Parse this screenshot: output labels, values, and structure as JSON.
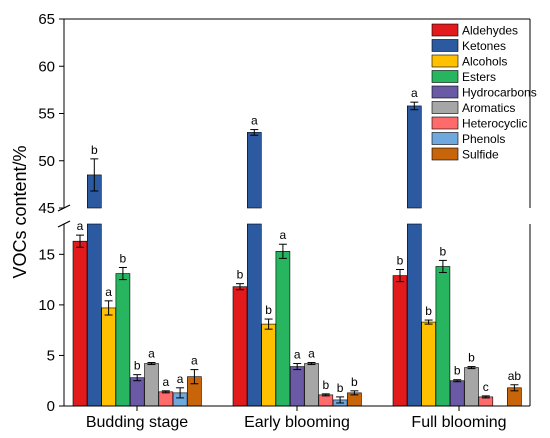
{
  "chart_data": {
    "type": "bar",
    "title": "",
    "xlabel": "",
    "ylabel": "VOCs content/%",
    "axis_break": {
      "lower_range": [
        0,
        18
      ],
      "upper_range": [
        45,
        65
      ]
    },
    "y_ticks_lower": [
      0,
      5,
      10,
      15
    ],
    "y_ticks_upper": [
      45,
      50,
      55,
      60,
      65
    ],
    "legend_position": "top-right",
    "grid": false,
    "categories": [
      "Budding stage",
      "Early blooming",
      "Full blooming"
    ],
    "series": [
      {
        "name": "Aldehydes",
        "color": "#e31a1c",
        "values": [
          16.3,
          11.8,
          12.9
        ],
        "errors": [
          0.6,
          0.3,
          0.6
        ],
        "letters": [
          "a",
          "b",
          "b"
        ]
      },
      {
        "name": "Ketones",
        "color": "#2c5aa0",
        "values": [
          48.5,
          53.0,
          55.8
        ],
        "errors": [
          1.7,
          0.3,
          0.4
        ],
        "letters": [
          "b",
          "a",
          "a"
        ]
      },
      {
        "name": "Alcohols",
        "color": "#ffc000",
        "values": [
          9.7,
          8.1,
          8.3
        ],
        "errors": [
          0.7,
          0.5,
          0.2
        ],
        "letters": [
          "a",
          "b",
          "b"
        ]
      },
      {
        "name": "Esters",
        "color": "#27b560",
        "values": [
          13.1,
          15.3,
          13.8
        ],
        "errors": [
          0.6,
          0.7,
          0.6
        ],
        "letters": [
          "b",
          "a",
          "b"
        ]
      },
      {
        "name": "Hydrocarbons",
        "color": "#6a5aa6",
        "values": [
          2.8,
          3.9,
          2.5
        ],
        "errors": [
          0.3,
          0.3,
          0.1
        ],
        "letters": [
          "b",
          "a",
          "b"
        ]
      },
      {
        "name": "Aromatics",
        "color": "#a6a6a6",
        "values": [
          4.2,
          4.2,
          3.8
        ],
        "errors": [
          0.1,
          0.1,
          0.1
        ],
        "letters": [
          "a",
          "a",
          "b"
        ]
      },
      {
        "name": "Heterocyclic",
        "color": "#ff6b6b",
        "values": [
          1.4,
          1.1,
          0.9
        ],
        "errors": [
          0.1,
          0.1,
          0.1
        ],
        "letters": [
          "a",
          "b",
          "c"
        ]
      },
      {
        "name": "Phenols",
        "color": "#6fa8dc",
        "values": [
          1.3,
          0.6,
          0
        ],
        "errors": [
          0.5,
          0.3,
          0
        ],
        "letters": [
          "a",
          "b",
          ""
        ]
      },
      {
        "name": "Sulfide",
        "color": "#c8650a",
        "values": [
          2.9,
          1.3,
          1.8
        ],
        "errors": [
          0.7,
          0.2,
          0.3
        ],
        "letters": [
          "a",
          "b",
          "ab"
        ]
      }
    ]
  }
}
